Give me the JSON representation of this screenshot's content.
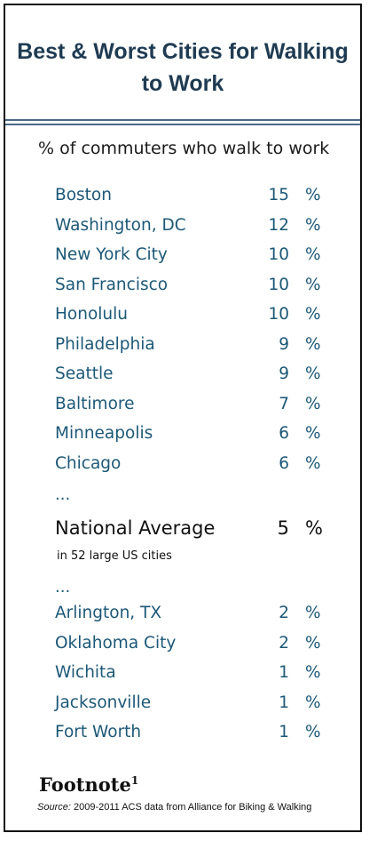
{
  "chart_data": {
    "type": "table",
    "title": "Best & Worst Cities for Walking to Work",
    "subtitle": "% of commuters who walk to work",
    "unit": "%",
    "ellipsis": "...",
    "top": [
      {
        "city": "Boston",
        "value": 15
      },
      {
        "city": "Washington, DC",
        "value": 12
      },
      {
        "city": "New York City",
        "value": 10
      },
      {
        "city": "San Francisco",
        "value": 10
      },
      {
        "city": "Honolulu",
        "value": 10
      },
      {
        "city": "Philadelphia",
        "value": 9
      },
      {
        "city": "Seattle",
        "value": 9
      },
      {
        "city": "Baltimore",
        "value": 7
      },
      {
        "city": "Minneapolis",
        "value": 6
      },
      {
        "city": "Chicago",
        "value": 6
      }
    ],
    "national_average": {
      "label": "National Average",
      "note": "in 52 large US cities",
      "value": 5
    },
    "bottom": [
      {
        "city": "Arlington, TX",
        "value": 2
      },
      {
        "city": "Oklahoma City",
        "value": 2
      },
      {
        "city": "Wichita",
        "value": 1
      },
      {
        "city": "Jacksonville",
        "value": 1
      },
      {
        "city": "Fort Worth",
        "value": 1
      }
    ]
  },
  "footer": {
    "brand": "Footnote",
    "brand_sup": "1",
    "source_label": "Source:",
    "source_text": " 2009-2011 ACS data from Alliance for Biking & Walking"
  },
  "colors": {
    "title": "#1f3b52",
    "city": "#1c5877",
    "rule": "#4a6a84"
  }
}
